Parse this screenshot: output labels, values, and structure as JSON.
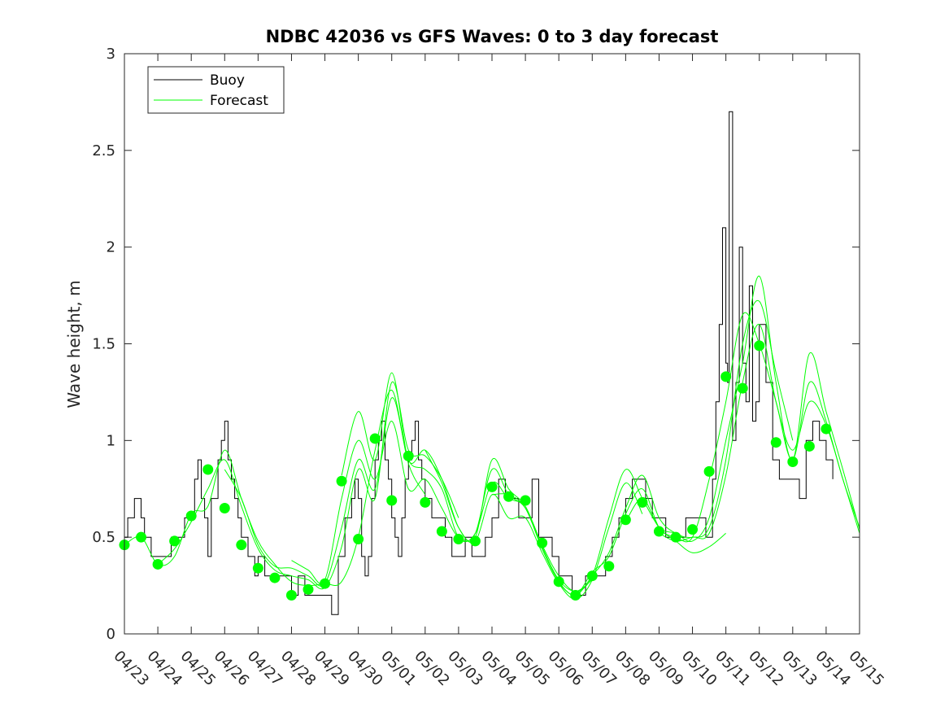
{
  "chart_data": {
    "type": "line",
    "title": "NDBC 42036 vs GFS Waves: 0 to 3 day forecast",
    "xlabel": "",
    "ylabel": "Wave height, m",
    "ylim": [
      0,
      3
    ],
    "yticks": [
      "0",
      "0.5",
      "1",
      "1.5",
      "2",
      "2.5",
      "3"
    ],
    "xlim": [
      0,
      22
    ],
    "xticks": [
      "04/23",
      "04/24",
      "04/25",
      "04/26",
      "04/27",
      "04/28",
      "04/29",
      "04/30",
      "05/01",
      "05/02",
      "05/03",
      "05/04",
      "05/05",
      "05/06",
      "05/07",
      "05/08",
      "05/09",
      "05/10",
      "05/11",
      "05/12",
      "05/13",
      "05/14",
      "05/15"
    ],
    "legend": {
      "position": "top-left",
      "entries": [
        "Buoy",
        "Forecast"
      ]
    },
    "colors": {
      "buoy": "#000000",
      "forecast": "#00ff00",
      "points": "#00ff00"
    },
    "buoy": {
      "name": "Buoy",
      "x": [
        0,
        0.1,
        0.2,
        0.3,
        0.4,
        0.5,
        0.6,
        0.8,
        0.9,
        1.0,
        1.2,
        1.4,
        1.6,
        1.8,
        2.0,
        2.1,
        2.2,
        2.3,
        2.4,
        2.5,
        2.6,
        2.8,
        2.9,
        3.0,
        3.1,
        3.2,
        3.3,
        3.4,
        3.5,
        3.6,
        3.7,
        3.8,
        3.9,
        4.0,
        4.2,
        4.4,
        4.6,
        4.8,
        5.0,
        5.2,
        5.4,
        5.6,
        5.8,
        6.0,
        6.2,
        6.4,
        6.6,
        6.8,
        6.9,
        7.0,
        7.1,
        7.2,
        7.3,
        7.4,
        7.5,
        7.6,
        7.7,
        7.8,
        7.9,
        8.0,
        8.1,
        8.2,
        8.3,
        8.4,
        8.5,
        8.6,
        8.7,
        8.8,
        8.9,
        9.0,
        9.2,
        9.4,
        9.6,
        9.8,
        10.0,
        10.2,
        10.4,
        10.6,
        10.8,
        11.0,
        11.2,
        11.4,
        11.6,
        11.8,
        12.0,
        12.2,
        12.4,
        12.6,
        12.8,
        13.0,
        13.2,
        13.4,
        13.6,
        13.8,
        14.0,
        14.2,
        14.4,
        14.6,
        14.8,
        15.0,
        15.2,
        15.4,
        15.6,
        15.8,
        16.0,
        16.2,
        16.4,
        16.6,
        16.8,
        17.0,
        17.2,
        17.4,
        17.6,
        17.7,
        17.8,
        17.9,
        18.0,
        18.05,
        18.1,
        18.2,
        18.3,
        18.4,
        18.5,
        18.6,
        18.7,
        18.8,
        18.9,
        19.0,
        19.2,
        19.4,
        19.6,
        19.8,
        20.0,
        20.2,
        20.4,
        20.6,
        20.8,
        21.0,
        21.2
      ],
      "y": [
        0.5,
        0.6,
        0.6,
        0.7,
        0.7,
        0.6,
        0.5,
        0.4,
        0.4,
        0.4,
        0.4,
        0.5,
        0.5,
        0.6,
        0.6,
        0.8,
        0.9,
        0.7,
        0.6,
        0.4,
        0.7,
        0.9,
        1.0,
        1.1,
        0.9,
        0.8,
        0.7,
        0.6,
        0.5,
        0.5,
        0.4,
        0.4,
        0.3,
        0.4,
        0.3,
        0.3,
        0.3,
        0.3,
        0.2,
        0.3,
        0.2,
        0.2,
        0.2,
        0.2,
        0.1,
        0.4,
        0.6,
        0.7,
        0.8,
        0.7,
        0.4,
        0.3,
        0.4,
        0.7,
        0.9,
        1.0,
        1.1,
        0.9,
        0.8,
        0.6,
        0.5,
        0.4,
        0.6,
        0.8,
        0.9,
        1.0,
        1.1,
        0.9,
        0.8,
        0.7,
        0.6,
        0.6,
        0.5,
        0.4,
        0.4,
        0.5,
        0.4,
        0.4,
        0.5,
        0.6,
        0.8,
        0.7,
        0.7,
        0.6,
        0.6,
        0.8,
        0.5,
        0.5,
        0.4,
        0.3,
        0.3,
        0.2,
        0.2,
        0.3,
        0.3,
        0.3,
        0.4,
        0.5,
        0.6,
        0.7,
        0.8,
        0.8,
        0.7,
        0.6,
        0.6,
        0.5,
        0.5,
        0.5,
        0.6,
        0.6,
        0.6,
        0.5,
        0.8,
        1.2,
        1.6,
        2.1,
        1.4,
        1.3,
        2.7,
        1.0,
        1.3,
        2.0,
        1.4,
        1.2,
        1.8,
        1.1,
        1.2,
        1.6,
        1.3,
        0.9,
        0.8,
        0.8,
        0.8,
        0.7,
        1.0,
        1.1,
        1.0,
        0.9,
        0.8
      ]
    },
    "forecast": {
      "name": "Forecast",
      "runs": [
        {
          "x": [
            0.0,
            0.5,
            1.0,
            1.5,
            2.0,
            2.5,
            3.0,
            3.5,
            4.0,
            4.5,
            5.0,
            5.5,
            6.0,
            6.5,
            7.0,
            7.5,
            8.0,
            8.5,
            9.0
          ],
          "y": [
            0.46,
            0.5,
            0.36,
            0.4,
            0.62,
            0.66,
            0.95,
            0.7,
            0.48,
            0.36,
            0.27,
            0.25,
            0.26,
            0.27,
            0.5,
            0.95,
            1.26,
            0.88,
            0.72
          ]
        },
        {
          "x": [
            1.0,
            1.5,
            2.0,
            2.5,
            3.0,
            3.5,
            4.0,
            4.5,
            5.0,
            5.5,
            6.0,
            6.5,
            7.0,
            7.5,
            8.0,
            8.5,
            9.0,
            9.5,
            10.0
          ],
          "y": [
            0.36,
            0.44,
            0.58,
            0.75,
            0.9,
            0.66,
            0.44,
            0.33,
            0.3,
            0.28,
            0.24,
            0.45,
            0.85,
            0.7,
            1.3,
            0.95,
            0.92,
            0.8,
            0.6
          ]
        },
        {
          "x": [
            3.0,
            3.5,
            4.0,
            4.5,
            5.0,
            5.5,
            6.0,
            6.5,
            7.0,
            7.5,
            8.0,
            8.5,
            9.0,
            9.5,
            10.0,
            10.5,
            11.0,
            11.5,
            12.0
          ],
          "y": [
            0.85,
            0.7,
            0.46,
            0.35,
            0.34,
            0.3,
            0.26,
            0.55,
            0.9,
            0.75,
            1.22,
            0.9,
            0.85,
            0.75,
            0.5,
            0.52,
            0.78,
            0.7,
            0.68
          ]
        },
        {
          "x": [
            5.0,
            5.5,
            6.0,
            6.5,
            7.0,
            7.5,
            8.0,
            8.5,
            9.0,
            9.5,
            10.0,
            10.5,
            11.0,
            11.5,
            12.0,
            12.5,
            13.0,
            13.5,
            14.0
          ],
          "y": [
            0.38,
            0.33,
            0.28,
            0.7,
            1.0,
            0.8,
            1.1,
            0.75,
            0.8,
            0.65,
            0.5,
            0.52,
            0.85,
            0.72,
            0.65,
            0.45,
            0.28,
            0.22,
            0.28
          ]
        },
        {
          "x": [
            6.5,
            7.0,
            7.5,
            8.0,
            8.5,
            9.0,
            9.5,
            10.0,
            10.5,
            11.0,
            11.5,
            12.0,
            12.5,
            13.0,
            13.5,
            14.0,
            14.5,
            15.0,
            15.5
          ],
          "y": [
            0.82,
            1.15,
            0.9,
            1.35,
            0.9,
            0.95,
            0.8,
            0.55,
            0.48,
            0.72,
            0.6,
            0.6,
            0.42,
            0.26,
            0.18,
            0.28,
            0.55,
            0.78,
            0.62
          ]
        },
        {
          "x": [
            9.0,
            9.5,
            10.0,
            10.5,
            11.0,
            11.5,
            12.0,
            12.5,
            13.0,
            13.5,
            14.0,
            14.5,
            15.0,
            15.5,
            16.0,
            16.5,
            17.0,
            17.5,
            18.0
          ],
          "y": [
            0.95,
            0.78,
            0.55,
            0.5,
            0.9,
            0.75,
            0.66,
            0.46,
            0.3,
            0.22,
            0.3,
            0.6,
            0.85,
            0.7,
            0.55,
            0.48,
            0.42,
            0.45,
            0.52
          ]
        },
        {
          "x": [
            11.0,
            11.5,
            12.0,
            12.5,
            13.0,
            13.5,
            14.0,
            14.5,
            15.0,
            15.5,
            16.0,
            16.5,
            17.0,
            17.5,
            18.0,
            18.5,
            19.0,
            19.5,
            20.0
          ],
          "y": [
            0.72,
            0.72,
            0.65,
            0.44,
            0.27,
            0.2,
            0.3,
            0.42,
            0.65,
            0.82,
            0.6,
            0.52,
            0.5,
            0.55,
            0.9,
            1.5,
            1.72,
            1.35,
            1.0
          ]
        },
        {
          "x": [
            13.0,
            13.5,
            14.0,
            14.5,
            15.0,
            15.5,
            16.0,
            16.5,
            17.0,
            17.5,
            18.0,
            18.5,
            19.0,
            19.5,
            20.0,
            20.5,
            21.0,
            21.5,
            22.0
          ],
          "y": [
            0.26,
            0.2,
            0.32,
            0.4,
            0.62,
            0.75,
            0.55,
            0.5,
            0.5,
            0.8,
            1.2,
            1.65,
            1.5,
            1.2,
            0.9,
            1.3,
            1.1,
            0.8,
            0.55
          ]
        },
        {
          "x": [
            15.0,
            15.5,
            16.0,
            16.5,
            17.0,
            17.5,
            18.0,
            18.5,
            19.0,
            19.5,
            20.0,
            20.5,
            21.0,
            21.5,
            22.0
          ],
          "y": [
            0.58,
            0.7,
            0.55,
            0.52,
            0.48,
            0.6,
            1.0,
            1.4,
            1.85,
            1.3,
            0.9,
            1.45,
            1.15,
            0.85,
            0.54
          ]
        },
        {
          "x": [
            16.0,
            16.5,
            17.0,
            17.5,
            18.0,
            18.5,
            19.0,
            19.5,
            20.0,
            20.5,
            21.0,
            21.5,
            22.0
          ],
          "y": [
            0.52,
            0.48,
            0.5,
            0.52,
            0.82,
            1.3,
            1.6,
            1.2,
            0.95,
            1.2,
            1.08,
            0.8,
            0.52
          ]
        }
      ],
      "points": {
        "x": [
          0.0,
          0.5,
          1.0,
          1.5,
          2.0,
          2.5,
          3.0,
          3.5,
          4.0,
          4.5,
          5.0,
          5.5,
          6.0,
          6.5,
          7.0,
          7.5,
          8.0,
          8.5,
          9.0,
          9.5,
          10.0,
          10.5,
          11.0,
          11.5,
          12.0,
          12.5,
          13.0,
          13.5,
          14.0,
          14.5,
          15.0,
          15.5,
          16.0,
          16.5,
          17.0,
          17.5,
          18.0,
          18.5,
          19.0,
          19.5,
          20.0,
          20.5,
          21.0
        ],
        "y": [
          0.46,
          0.5,
          0.36,
          0.48,
          0.61,
          0.85,
          0.65,
          0.46,
          0.34,
          0.29,
          0.2,
          0.23,
          0.26,
          0.79,
          0.49,
          1.01,
          0.69,
          0.92,
          0.68,
          0.53,
          0.49,
          0.48,
          0.76,
          0.71,
          0.69,
          0.47,
          0.27,
          0.2,
          0.3,
          0.35,
          0.59,
          0.68,
          0.53,
          0.5,
          0.54,
          0.84,
          1.33,
          1.27,
          1.49,
          0.99,
          0.89,
          0.97,
          1.06
        ]
      }
    }
  }
}
